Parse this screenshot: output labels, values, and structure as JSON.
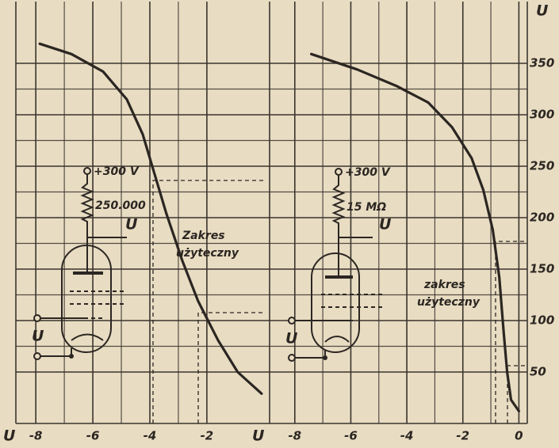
{
  "chart_data": [
    {
      "type": "line",
      "x_label": "U",
      "xlim": [
        -8.7,
        0.2
      ],
      "xticks": [
        -8,
        -6,
        -4,
        -2
      ],
      "ylim": [
        0,
        410
      ],
      "series": [
        {
          "color": "#2b2622",
          "x": [
            -7.86,
            -6.75,
            -5.64,
            -4.81,
            -4.25,
            -3.83,
            -3.42,
            -2.86,
            -2.31,
            -1.61,
            -0.92,
            -0.08
          ],
          "values": [
            369,
            359,
            342,
            315,
            281,
            242,
            204,
            158,
            119,
            81,
            50,
            29
          ]
        }
      ],
      "annotations": {
        "supply": "+300 V",
        "resistor": "250.000",
        "output": "U",
        "input": "U",
        "range": [
          "Zakres",
          "użyteczny"
        ]
      }
    },
    {
      "type": "line",
      "x_label": "U",
      "y_label": "U",
      "xlim": [
        -8.9,
        0.3
      ],
      "xticks": [
        -8,
        -6,
        -4,
        -2,
        0
      ],
      "ylim": [
        0,
        410
      ],
      "yticks": [
        50,
        100,
        150,
        200,
        250,
        300,
        350
      ],
      "series": [
        {
          "color": "#2b2622",
          "x": [
            -7.41,
            -5.77,
            -4.37,
            -3.24,
            -2.39,
            -1.69,
            -1.27,
            -0.93,
            -0.7,
            -0.54,
            -0.42,
            -0.28,
            0
          ],
          "values": [
            359,
            344,
            328,
            312,
            288,
            258,
            227,
            188,
            142,
            88,
            50,
            23,
            12
          ]
        }
      ],
      "annotations": {
        "supply": "+300 V",
        "resistor": "15 MΩ",
        "output": "U",
        "input": "U",
        "range": [
          "zakres",
          "użyteczny"
        ]
      }
    }
  ]
}
